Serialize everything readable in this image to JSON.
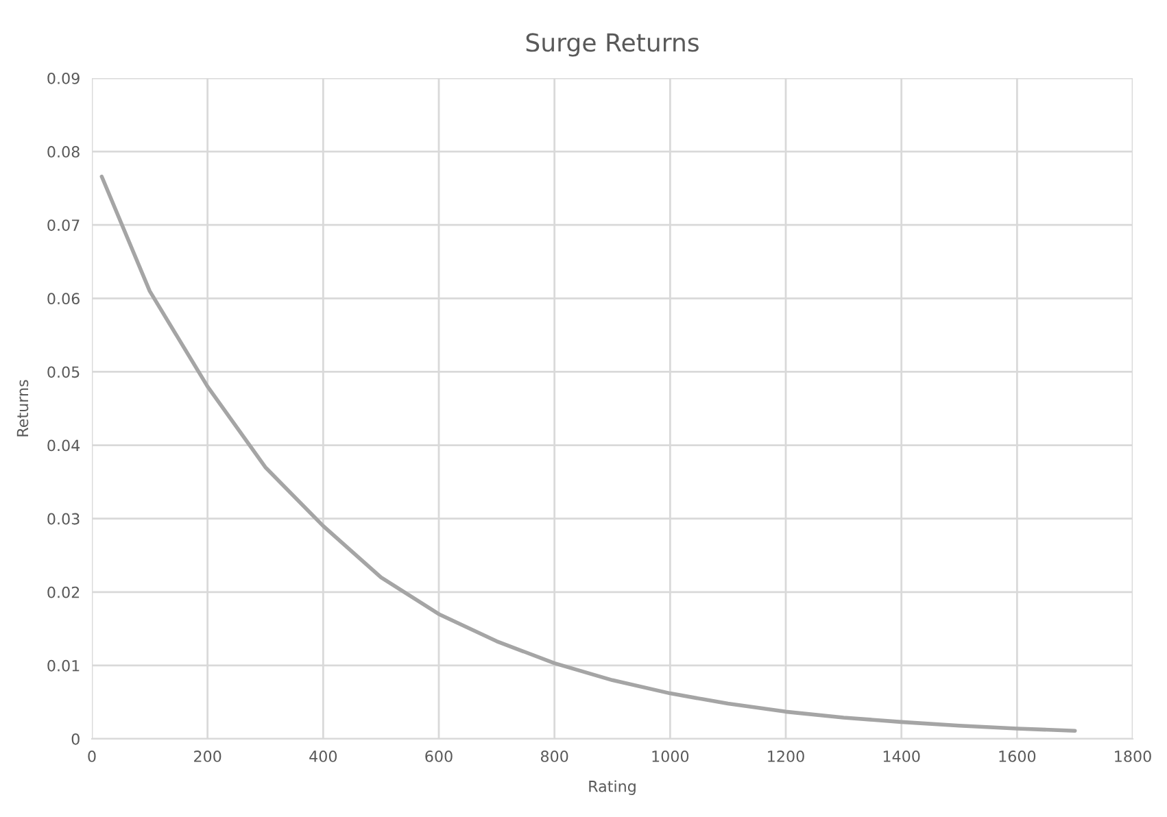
{
  "chart_data": {
    "type": "line",
    "title": "Surge Returns",
    "xlabel": "Rating",
    "ylabel": "Returns",
    "x": [
      17,
      100,
      200,
      300,
      400,
      500,
      600,
      700,
      800,
      900,
      1000,
      1100,
      1200,
      1300,
      1400,
      1500,
      1600,
      1700
    ],
    "series": [
      {
        "color": "#a5a5a5",
        "values": [
          0.0766,
          0.061,
          0.048,
          0.037,
          0.029,
          0.022,
          0.017,
          0.0133,
          0.0103,
          0.008,
          0.0062,
          0.0048,
          0.0037,
          0.0029,
          0.0023,
          0.0018,
          0.0014,
          0.0011
        ]
      }
    ],
    "xlim": [
      0,
      1800
    ],
    "xticks": [
      0,
      200,
      400,
      600,
      800,
      1000,
      1200,
      1400,
      1600,
      1800
    ],
    "ylim": [
      0,
      0.09
    ],
    "yticks": [
      0,
      0.01,
      0.02,
      0.03,
      0.04,
      0.05,
      0.06,
      0.07,
      0.08,
      0.09
    ],
    "grid": true,
    "marker": "none",
    "line_style": "solid",
    "legend": false
  }
}
